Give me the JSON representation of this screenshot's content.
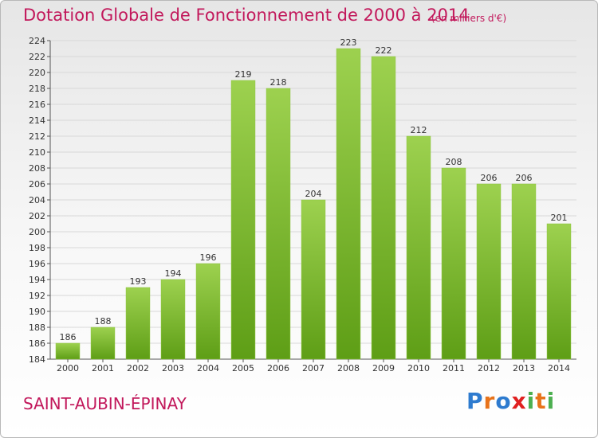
{
  "header": {
    "title": "Dotation Globale de Fonctionnement de 2000 à 2014",
    "subtitle": "(en milliers d'€)"
  },
  "footer": {
    "commune": "SAINT-AUBIN-ÉPINAY",
    "logo_letters": [
      "P",
      "r",
      "o",
      "x",
      "i",
      "t",
      "i"
    ],
    "logo_colors": [
      "#2e7bcf",
      "#e8731a",
      "#2e7bcf",
      "#e02020",
      "#4caf50",
      "#e8731a",
      "#4caf50"
    ]
  },
  "colors": {
    "bar_top": "#9dd14f",
    "bar_bottom": "#5e9e16",
    "grid": "#d8d8d8",
    "axis": "#555555"
  },
  "chart_data": {
    "type": "bar",
    "title": "Dotation Globale de Fonctionnement de 2000 à 2014",
    "subtitle": "(en milliers d'€)",
    "categories": [
      "2000",
      "2001",
      "2002",
      "2003",
      "2004",
      "2005",
      "2006",
      "2007",
      "2008",
      "2009",
      "2010",
      "2011",
      "2012",
      "2013",
      "2014"
    ],
    "values": [
      186,
      188,
      193,
      194,
      196,
      219,
      218,
      204,
      223,
      222,
      212,
      208,
      206,
      206,
      201
    ],
    "ylim": [
      184,
      224
    ],
    "yticks": [
      184,
      186,
      188,
      190,
      192,
      194,
      196,
      198,
      200,
      202,
      204,
      206,
      208,
      210,
      212,
      214,
      216,
      218,
      220,
      222,
      224
    ],
    "grid": true,
    "data_labels": true
  }
}
